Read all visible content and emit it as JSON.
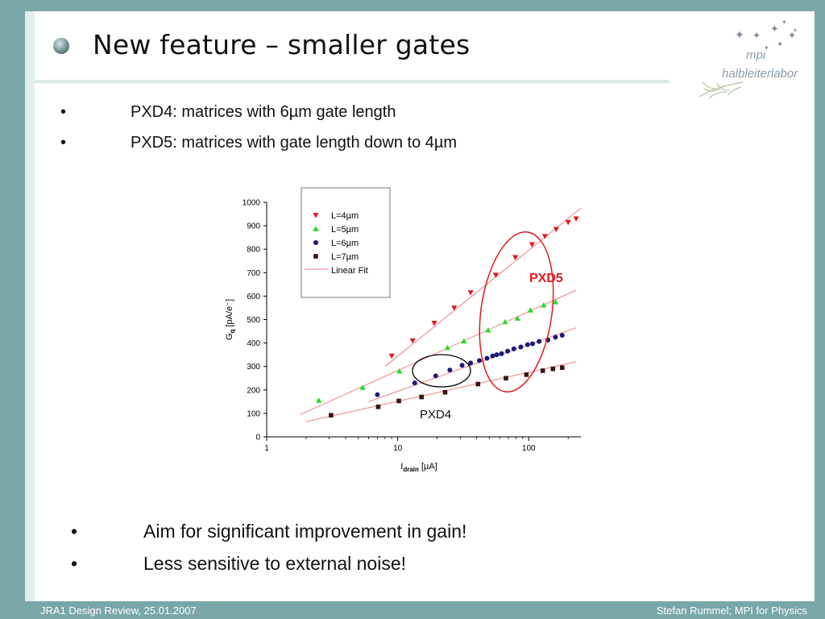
{
  "slide": {
    "title": "New feature – smaller gates",
    "bullets_top": [
      "PXD4: matrices with 6µm gate length",
      "PXD5: matrices with gate length down to 4µm"
    ],
    "bullets_bottom": [
      "Aim for significant improvement in gain!",
      "Less sensitive to external noise!"
    ],
    "bullet_char": "•",
    "footer_left": "JRA1 Design Review, 25.01.2007",
    "footer_right": "Stefan Rummel; MPI for Physics",
    "logo_line1": "mpi",
    "logo_line2": "halbleiterlabor",
    "annotation_pxd4": "PXD4",
    "annotation_pxd5": "PXD5"
  },
  "colors": {
    "frame": "#79a6a6",
    "frame_light": "#e3eeee",
    "pxd5_highlight": "#e01a1a",
    "L4": "#e01a1a",
    "L5": "#22dd22",
    "L6": "#1a1a7a",
    "L7": "#3a1410",
    "fit": "#f08080"
  },
  "chart_data": {
    "type": "scatter",
    "xscale": "log",
    "xlim": [
      1,
      250
    ],
    "ylim": [
      0,
      1000
    ],
    "xlabel_main": "I",
    "xlabel_sub": "drain",
    "xlabel_unit": " [µA]",
    "ylabel_main": "G",
    "ylabel_sub": "q",
    "ylabel_unit": " [pA/e⁻]",
    "x_ticks": [
      1,
      10,
      100
    ],
    "x_tick_labels": [
      "1",
      "10",
      "100"
    ],
    "y_ticks": [
      0,
      100,
      200,
      300,
      400,
      500,
      600,
      700,
      800,
      900,
      1000
    ],
    "y_tick_labels": [
      "0",
      "100",
      "200",
      "300",
      "400",
      "500",
      "600",
      "700",
      "800",
      "900",
      "1000"
    ],
    "legend_position": "top-left",
    "fit_label": "Linear Fit",
    "series": [
      {
        "name": "L=4µm",
        "marker": "triangle-down",
        "color": "#e01a1a",
        "points": [
          [
            9,
            345
          ],
          [
            13,
            410
          ],
          [
            19,
            485
          ],
          [
            27,
            550
          ],
          [
            36,
            615
          ],
          [
            56,
            690
          ],
          [
            79,
            765
          ],
          [
            106,
            820
          ],
          [
            133,
            855
          ],
          [
            162,
            885
          ],
          [
            200,
            915
          ],
          [
            230,
            930
          ]
        ],
        "fit": [
          [
            8,
            300
          ],
          [
            250,
            975
          ]
        ]
      },
      {
        "name": "L=5µm",
        "marker": "triangle-up",
        "color": "#22dd22",
        "points": [
          [
            2.5,
            155
          ],
          [
            5.4,
            210
          ],
          [
            10.3,
            280
          ],
          [
            24,
            380
          ],
          [
            32,
            408
          ],
          [
            49,
            455
          ],
          [
            66,
            490
          ],
          [
            82,
            505
          ],
          [
            103,
            540
          ],
          [
            130,
            562
          ],
          [
            160,
            575
          ]
        ],
        "fit": [
          [
            1.8,
            95
          ],
          [
            230,
            625
          ]
        ]
      },
      {
        "name": "L=6µm",
        "marker": "circle",
        "color": "#1a1a7a",
        "points": [
          [
            7,
            180
          ],
          [
            13.5,
            230
          ],
          [
            19.5,
            260
          ],
          [
            25,
            285
          ],
          [
            31,
            305
          ],
          [
            36,
            315
          ],
          [
            42,
            325
          ],
          [
            48,
            335
          ],
          [
            53,
            345
          ],
          [
            57,
            350
          ],
          [
            62,
            355
          ],
          [
            69,
            365
          ],
          [
            77,
            375
          ],
          [
            87,
            383
          ],
          [
            98,
            393
          ],
          [
            107,
            397
          ],
          [
            120,
            407
          ],
          [
            140,
            413
          ],
          [
            160,
            425
          ],
          [
            180,
            433
          ]
        ],
        "fit": [
          [
            6,
            150
          ],
          [
            230,
            465
          ]
        ]
      },
      {
        "name": "L=7µm",
        "marker": "square",
        "color": "#3a1410",
        "points": [
          [
            3.1,
            92
          ],
          [
            7.1,
            128
          ],
          [
            10.2,
            153
          ],
          [
            15.2,
            170
          ],
          [
            23,
            190
          ],
          [
            41,
            225
          ],
          [
            67,
            250
          ],
          [
            96,
            265
          ],
          [
            128,
            282
          ],
          [
            153,
            290
          ],
          [
            180,
            295
          ]
        ],
        "fit": [
          [
            2.0,
            65
          ],
          [
            230,
            320
          ]
        ]
      }
    ]
  }
}
